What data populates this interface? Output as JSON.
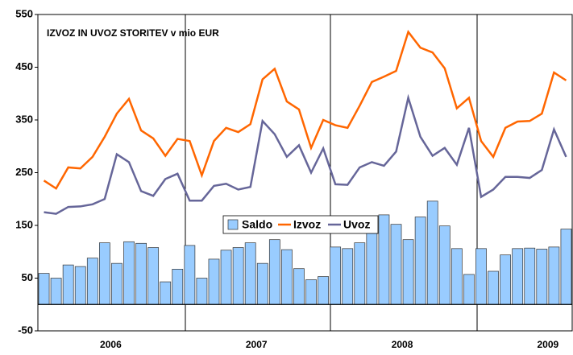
{
  "chart_data": {
    "type": "bar_line",
    "title": "IZVOZ IN UVOZ STORITEV v mio EUR",
    "categories": [
      null,
      null,
      null,
      null,
      null,
      "2006",
      null,
      null,
      null,
      null,
      null,
      null,
      null,
      null,
      null,
      null,
      null,
      "2007",
      null,
      null,
      null,
      null,
      null,
      null,
      null,
      null,
      null,
      null,
      null,
      "2008",
      null,
      null,
      null,
      null,
      null,
      null,
      null,
      null,
      null,
      null,
      null,
      "2009",
      null,
      null
    ],
    "series": [
      {
        "name": "Saldo",
        "type": "bar",
        "color": "#99ccff",
        "values": [
          59,
          50,
          75,
          72,
          88,
          117,
          78,
          119,
          116,
          108,
          43,
          67,
          112,
          50,
          86,
          103,
          108,
          117,
          78,
          123,
          104,
          68,
          47,
          53,
          109,
          106,
          117,
          140,
          170,
          152,
          123,
          166,
          196,
          149,
          106,
          57,
          106,
          63,
          94,
          106,
          107,
          105,
          109,
          143
        ]
      },
      {
        "name": "Izvoz",
        "type": "line",
        "color": "#ff6600",
        "values": [
          235,
          220,
          260,
          258,
          280,
          318,
          362,
          390,
          330,
          315,
          282,
          314,
          310,
          245,
          310,
          335,
          327,
          342,
          427,
          447,
          385,
          370,
          297,
          350,
          340,
          335,
          377,
          422,
          432,
          443,
          517,
          487,
          478,
          448,
          372,
          392,
          310,
          280,
          335,
          347,
          348,
          362,
          440,
          425
        ]
      },
      {
        "name": "Uvoz",
        "type": "line",
        "color": "#666699",
        "values": [
          175,
          172,
          185,
          186,
          190,
          200,
          285,
          270,
          215,
          206,
          238,
          248,
          197,
          197,
          225,
          229,
          218,
          223,
          348,
          323,
          280,
          302,
          250,
          296,
          228,
          227,
          260,
          270,
          263,
          290,
          392,
          318,
          282,
          297,
          265,
          335,
          204,
          218,
          242,
          242,
          240,
          255,
          332,
          280
        ]
      }
    ],
    "ylim": [
      -50,
      550
    ],
    "yticks": [
      -50,
      50,
      150,
      250,
      350,
      450,
      550
    ],
    "legend": "center"
  }
}
